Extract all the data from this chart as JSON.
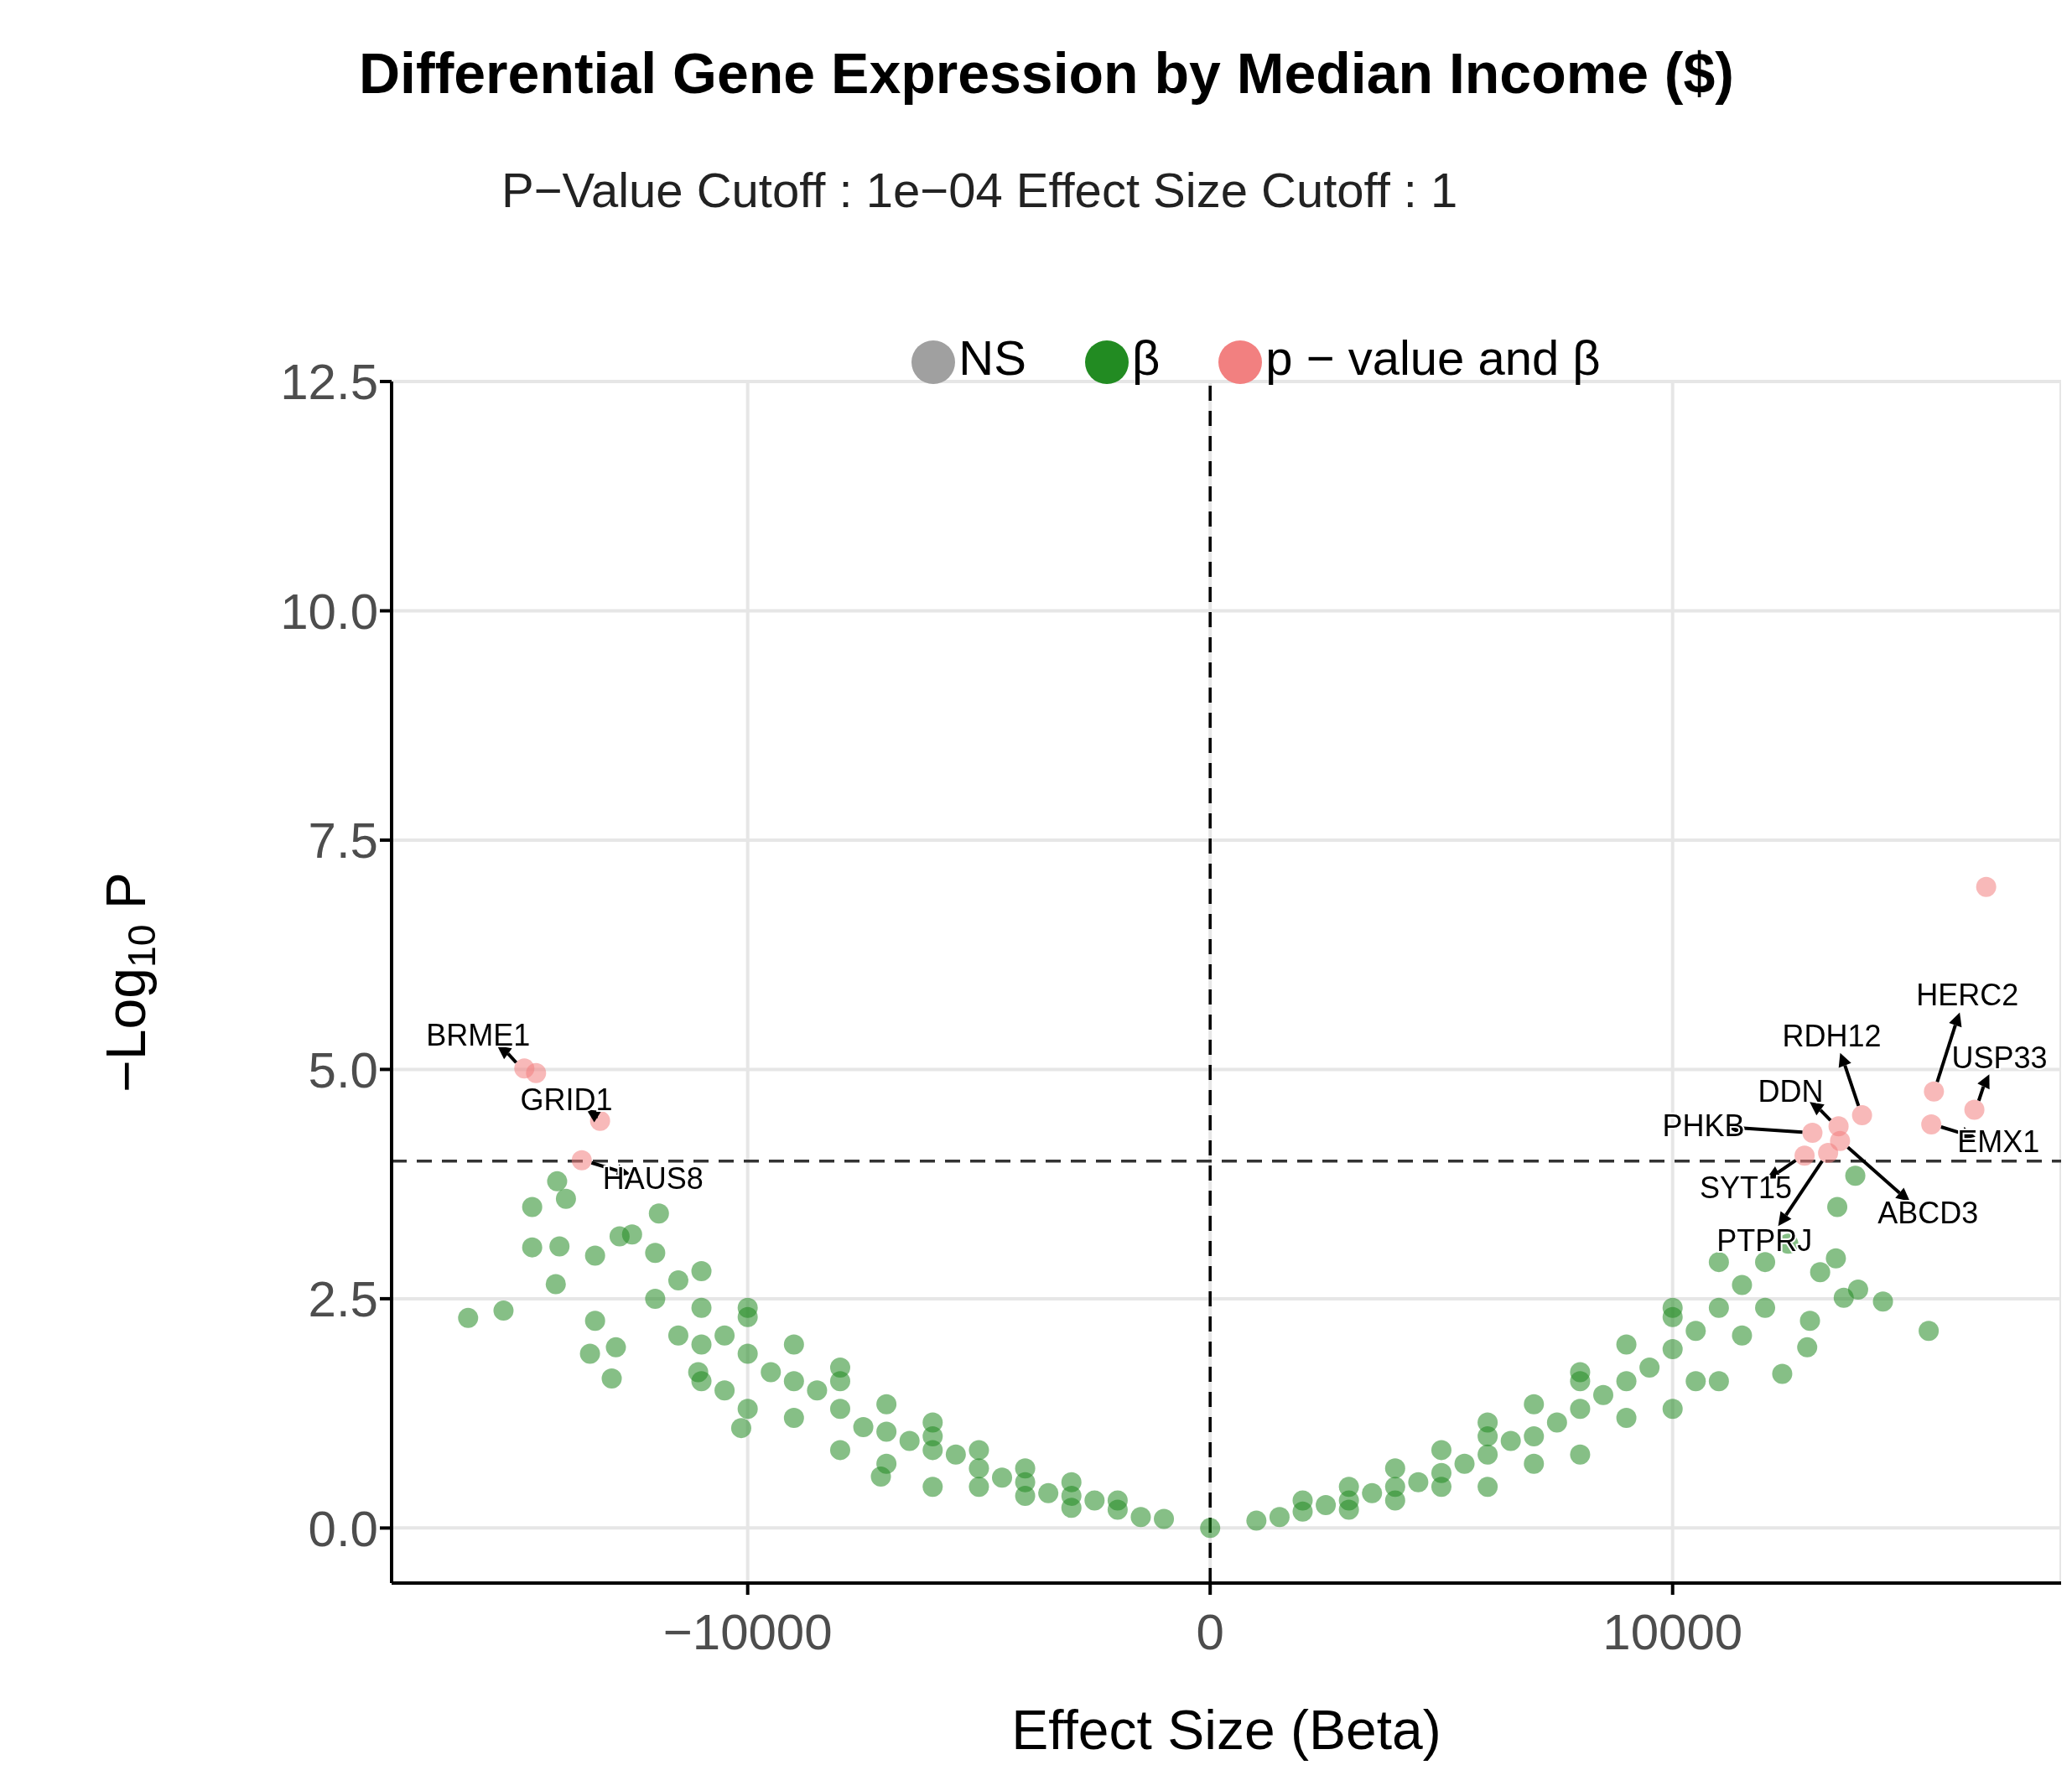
{
  "chart_data": {
    "type": "scatter",
    "title": "Differential Gene Expression by Median Income ($)",
    "subtitle": "P−Value Cutoff : 1e−04 Effect Size Cutoff : 1",
    "xlabel": "Effect Size (Beta)",
    "ylabel": "−Log$_{10}$ P",
    "xlim": [
      -17700,
      18400
    ],
    "xticks": [
      {
        "value": -10000,
        "label": "−10000"
      },
      0,
      10000
    ],
    "ylim": [
      -0.6,
      12.5
    ],
    "yticks": [
      {
        "value": 0,
        "label": "0.0"
      },
      2.5,
      {
        "value": 5,
        "label": "5.0"
      },
      7.5,
      {
        "value": 10,
        "label": "10.0"
      },
      12.5
    ],
    "grid": true,
    "legend": "top",
    "marker": "circle",
    "ref_lines": [
      {
        "axis": "x",
        "value": 0,
        "color": "#000000",
        "line_style": "dashed"
      },
      {
        "axis": "y",
        "value": 4,
        "color": "#333333",
        "line_style": "dashed"
      }
    ],
    "series": [
      {
        "name": "NS",
        "color": "#a0a0a0"
      },
      {
        "name": "β",
        "color": "#228b22",
        "x": [
          -1000,
          -2000,
          -3000,
          -4000,
          -5000,
          -6000,
          -7000,
          -8000,
          -9000,
          -10000,
          -11000,
          -11500,
          -12000,
          -6000,
          -8000,
          -10000,
          -11000,
          -6000,
          -8000,
          -10000,
          -11000,
          -16045,
          -15280,
          -14660,
          -14660,
          -14150,
          -14120,
          -13930,
          -14070,
          -13300,
          -13410,
          -12940,
          -12850,
          -11920,
          -13300,
          -12770,
          -10140,
          -11070,
          -7120,
          -1500,
          -2500,
          -3500,
          -4500,
          -5500,
          -6500,
          -7500,
          -8500,
          -9500,
          -10500,
          -10500,
          -9000,
          -7000,
          -5000,
          -4000,
          -3000,
          -11500,
          -11000,
          -12500,
          -12000,
          -10000,
          -9000,
          -8000,
          -7000,
          -6000,
          -5000,
          -4000,
          -3000,
          -2000,
          0,
          1000,
          2000,
          3000,
          4000,
          5000,
          6000,
          7000,
          8000,
          9000,
          10000,
          11000,
          12000,
          6000,
          8000,
          10000,
          11000,
          6000,
          8000,
          10000,
          11000,
          15537,
          14548,
          14011,
          13700,
          12910,
          12370,
          12970,
          13950,
          13560,
          13530,
          13190,
          1500,
          2500,
          3500,
          4500,
          5500,
          6500,
          7500,
          8500,
          9500,
          10500,
          11500,
          10500,
          9000,
          7000,
          5000,
          4000,
          3000,
          11500,
          12000,
          12500,
          10000,
          9000,
          8000,
          7000,
          6000,
          5000,
          4000,
          3000,
          2000
        ],
        "values": [
          0.1,
          0.2,
          0.35,
          0.5,
          0.65,
          0.85,
          1.05,
          1.3,
          1.6,
          1.9,
          2.4,
          2.7,
          3.0,
          0.45,
          0.85,
          1.3,
          1.6,
          1.0,
          1.6,
          2.3,
          2.8,
          2.29,
          2.37,
          3.5,
          3.06,
          2.66,
          3.78,
          3.59,
          3.07,
          2.26,
          1.9,
          1.63,
          1.97,
          3.43,
          2.97,
          3.18,
          1.09,
          1.7,
          0.56,
          0.12,
          0.3,
          0.38,
          0.55,
          0.8,
          0.95,
          1.1,
          1.5,
          1.7,
          2.1,
          1.5,
          1.2,
          0.7,
          0.45,
          0.35,
          0.22,
          2.1,
          2.0,
          3.2,
          2.5,
          2.4,
          2.0,
          1.75,
          1.35,
          1.15,
          0.85,
          0.65,
          0.5,
          0.3,
          0.0,
          0.08,
          0.18,
          0.3,
          0.45,
          0.6,
          0.8,
          1.0,
          1.3,
          1.6,
          1.95,
          2.4,
          2.9,
          0.45,
          0.8,
          1.3,
          1.6,
          1.0,
          1.6,
          2.3,
          2.9,
          2.15,
          2.47,
          2.6,
          2.51,
          1.97,
          1.68,
          2.26,
          3.84,
          3.5,
          2.94,
          2.79,
          0.12,
          0.25,
          0.38,
          0.5,
          0.7,
          0.95,
          1.15,
          1.45,
          1.75,
          2.15,
          2.65,
          1.6,
          1.2,
          0.7,
          0.45,
          0.3,
          0.2,
          2.1,
          2.4,
          3.1,
          2.4,
          2.0,
          1.7,
          1.35,
          1.15,
          0.85,
          0.65,
          0.45,
          0.3
        ]
      },
      {
        "name": "p − value and β",
        "color": "#f28080",
        "x": [
          -14830,
          -14576,
          -13192,
          -13588,
          16780,
          15650,
          16525,
          15593,
          14096,
          13588,
          13023,
          12853,
          13620,
          13362
        ],
        "values": [
          5.01,
          4.96,
          4.44,
          4.01,
          6.99,
          4.76,
          4.56,
          4.4,
          4.5,
          4.38,
          4.31,
          4.06,
          4.22,
          4.09
        ]
      }
    ],
    "annotations": [
      {
        "text": "BRME1",
        "x": -14830,
        "y": 5.01
      },
      {
        "text": "GRID1",
        "x": -13192,
        "y": 4.44
      },
      {
        "text": "HAUS8",
        "x": -13588,
        "y": 4.01
      },
      {
        "text": "PHKB",
        "x": 13023,
        "y": 4.31
      },
      {
        "text": "DDN",
        "x": 13588,
        "y": 4.38
      },
      {
        "text": "RDH12",
        "x": 14096,
        "y": 4.5
      },
      {
        "text": "SYT15",
        "x": 12853,
        "y": 4.06
      },
      {
        "text": "PTPRJ",
        "x": 13362,
        "y": 4.09
      },
      {
        "text": "ABCD3",
        "x": 13620,
        "y": 4.22
      },
      {
        "text": "HERC2",
        "x": 15650,
        "y": 4.76
      },
      {
        "text": "USP33",
        "x": 16525,
        "y": 4.56
      },
      {
        "text": "EMX1",
        "x": 15593,
        "y": 4.4
      }
    ]
  }
}
